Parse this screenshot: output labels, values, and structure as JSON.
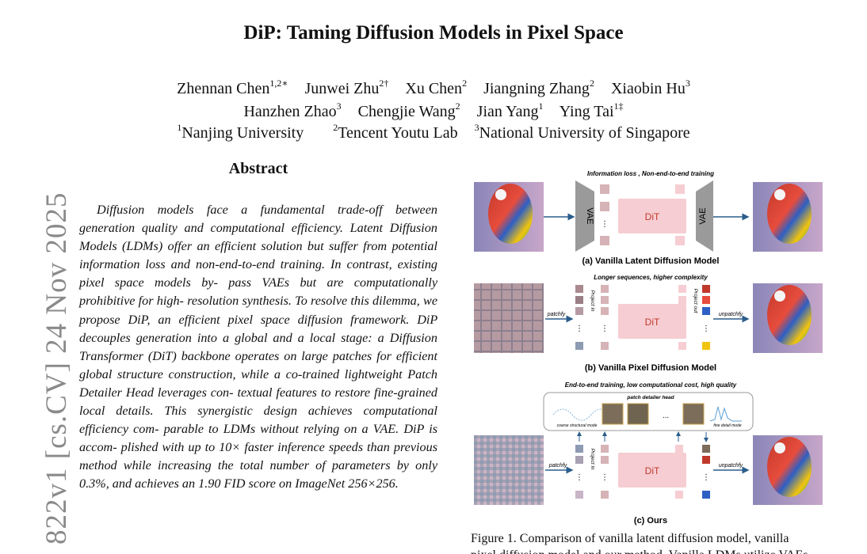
{
  "title": "DiP: Taming Diffusion Models in Pixel Space",
  "authors": {
    "line1": [
      {
        "name": "Zhennan Chen",
        "sup": "1,2∗"
      },
      {
        "name": "Junwei Zhu",
        "sup": "2†"
      },
      {
        "name": "Xu Chen",
        "sup": "2"
      },
      {
        "name": "Jiangning Zhang",
        "sup": "2"
      },
      {
        "name": "Xiaobin Hu",
        "sup": "3"
      }
    ],
    "line2": [
      {
        "name": "Hanzhen Zhao",
        "sup": "3"
      },
      {
        "name": "Chengjie Wang",
        "sup": "2"
      },
      {
        "name": "Jian Yang",
        "sup": "1"
      },
      {
        "name": "Ying Tai",
        "sup": "1‡"
      }
    ],
    "affiliations": [
      {
        "sup": "1",
        "name": "Nanjing University"
      },
      {
        "sup": "2",
        "name": "Tencent Youtu Lab"
      },
      {
        "sup": "3",
        "name": "National University of Singapore"
      }
    ]
  },
  "arxiv_stamp": "822v1  [cs.CV]  24 Nov 2025",
  "abstract": {
    "heading": "Abstract",
    "lines": [
      "Diffusion models face a fundamental trade-off between",
      "generation quality and computational efficiency. Latent",
      "Diffusion Models (LDMs) offer an efficient solution but",
      "suffer from potential information loss and non-end-to-end",
      "training. In contrast, existing pixel space models by-",
      "pass VAEs but are computationally prohibitive for high-",
      "resolution synthesis. To resolve this dilemma, we propose",
      "DiP, an efficient pixel space diffusion framework. DiP",
      "decouples generation into a global and a local stage: a",
      "Diffusion Transformer (DiT) backbone operates on large",
      "patches for efficient global structure construction, while a",
      "co-trained lightweight Patch Detailer Head leverages con-",
      "textual features to restore fine-grained local details. This",
      "synergistic design achieves computational efficiency com-",
      "parable to LDMs without relying on a VAE. DiP is accom-",
      "plished with up to 10× faster inference speeds than previous",
      "method while increasing the total number of parameters by",
      "only 0.3%, and achieves an 1.90 FID score on ImageNet",
      "256×256."
    ]
  },
  "figure": {
    "panel_a": {
      "note": "Information loss , Non-end-to-end training",
      "vae_left": "VAE",
      "dit": "DiT",
      "vae_right": "VAE",
      "caption": "(a) Vanilla Latent Diffusion Model"
    },
    "panel_b": {
      "note": "Longer sequences, higher complexity",
      "patchify": "patchfy",
      "project_in": "Project in",
      "dit": "DiT",
      "project_out": "Project out",
      "unpatchify": "unpatchfy",
      "caption": "(b) Vanilla Pixel Diffusion Model"
    },
    "panel_c": {
      "note": "End-to-end training, low computational cost, high quality",
      "head_title": "patch detailer head",
      "coarse": "coarse structural mode",
      "fine": "fine detail mode",
      "ellipsis": "...",
      "patchify": "patchfy",
      "project_in": "Project in",
      "dit": "DiT",
      "unpatchify": "unpatchfy",
      "caption": "(c) Ours"
    },
    "caption_line1": "Figure 1.  Comparison of vanilla latent diffusion model, vanilla",
    "caption_line2": "pixel diffusion model and our method. Vanilla LDMs utilize VAEs"
  },
  "colors": {
    "dit_fill": "#f6cdd2",
    "token_fill": "#d6b3b6",
    "vae_fill": "#9a9a9a",
    "arrow": "#2a5d8c",
    "arxiv_gray": "#8a8a8a"
  }
}
